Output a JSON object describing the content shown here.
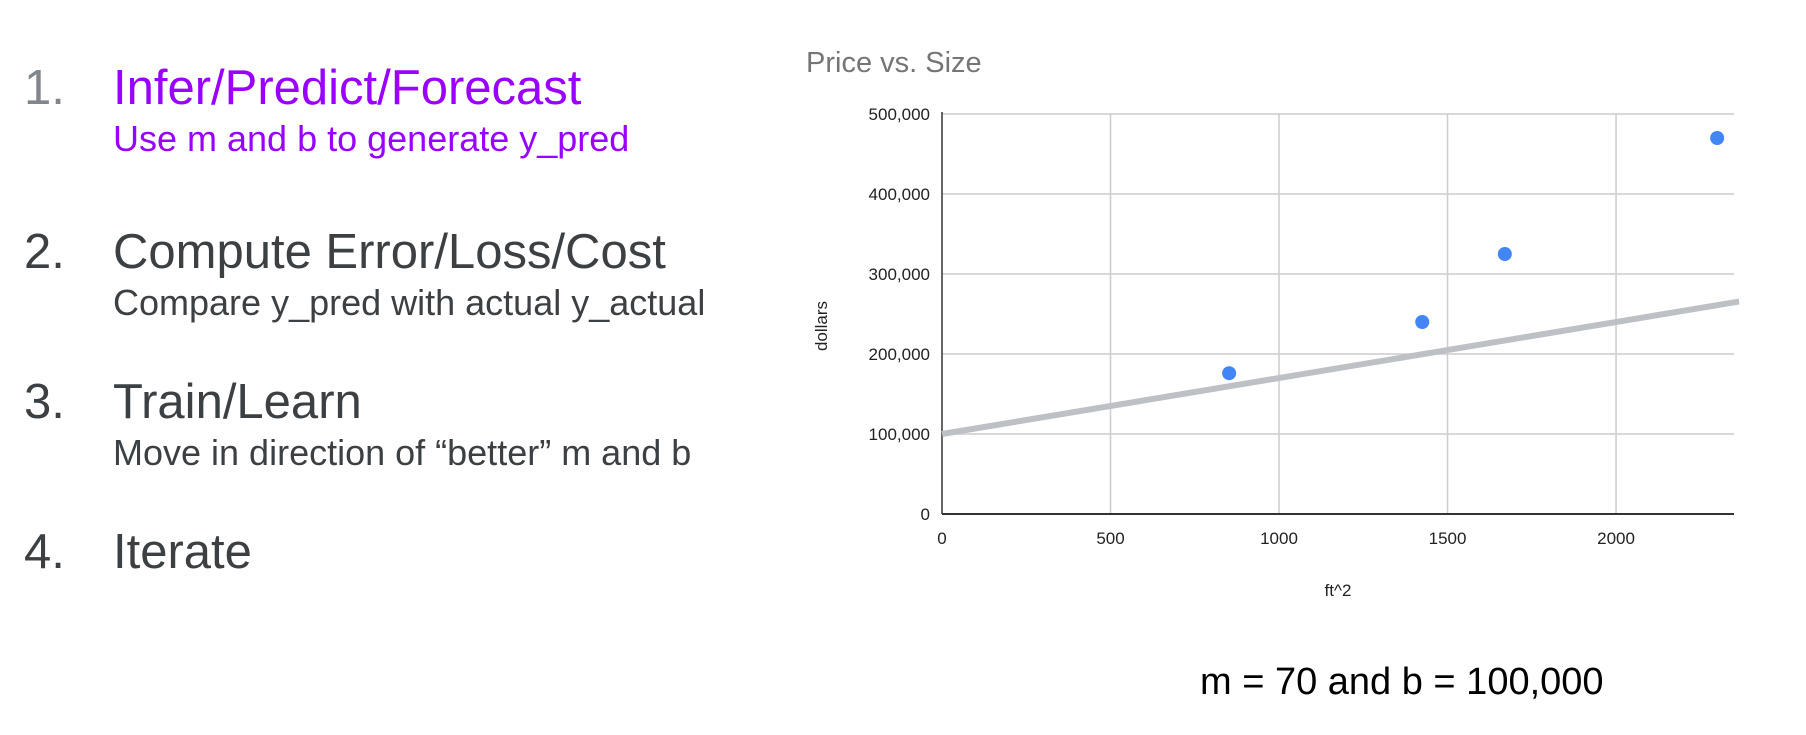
{
  "steps": [
    {
      "number": "1.",
      "title": "Infer/Predict/Forecast",
      "subtitle": "Use m and b to generate y_pred"
    },
    {
      "number": "2.",
      "title": "Compute Error/Loss/Cost",
      "subtitle": "Compare y_pred with actual y_actual"
    },
    {
      "number": "3.",
      "title": "Train/Learn",
      "subtitle": "Move in direction of “better” m and b"
    },
    {
      "number": "4.",
      "title": "Iterate",
      "subtitle": ""
    }
  ],
  "active_color": "#9900ff",
  "caption": "m = 70 and b = 100,000",
  "chart_data": {
    "type": "scatter",
    "title": "Price vs. Size",
    "xlabel": "ft^2",
    "ylabel": "dollars",
    "xlim": [
      0,
      2350
    ],
    "ylim": [
      0,
      500000
    ],
    "xticks": [
      0,
      500,
      1000,
      1500,
      2000
    ],
    "xtick_labels": [
      "0",
      "500",
      "1000",
      "1500",
      "2000"
    ],
    "yticks": [
      0,
      100000,
      200000,
      300000,
      400000,
      500000
    ],
    "ytick_labels": [
      "0",
      "100,000",
      "200,000",
      "300,000",
      "400,000",
      "500,000"
    ],
    "grid": true,
    "series": [
      {
        "type": "scatter",
        "color": "#4285f4",
        "x": [
          852,
          1425,
          1670,
          2300
        ],
        "y": [
          176000,
          240000,
          325000,
          470000
        ]
      }
    ],
    "line": {
      "m": 70,
      "b": 100000,
      "color": "#bdc1c6"
    }
  }
}
